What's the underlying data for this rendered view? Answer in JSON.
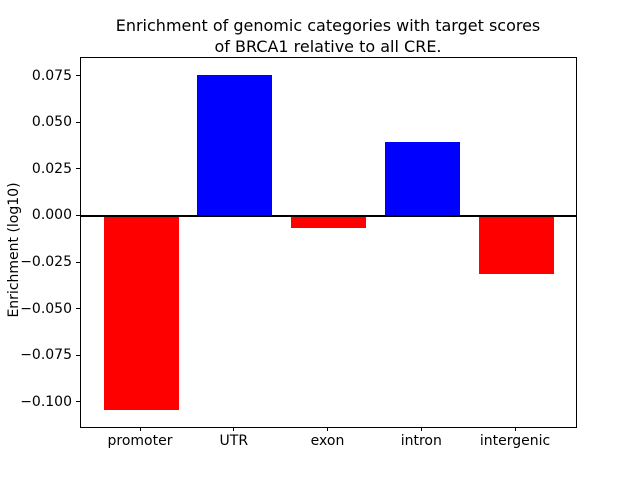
{
  "chart_data": {
    "type": "bar",
    "title": "Enrichment of genomic categories with target scores of BRCA1 relative to all CRE.",
    "title_lines": [
      "Enrichment of genomic categories with target scores",
      "of BRCA1 relative to all CRE."
    ],
    "xlabel": "",
    "ylabel": "Enrichment (log10)",
    "categories": [
      "promoter",
      "UTR",
      "exon",
      "intron",
      "intergenic"
    ],
    "values": [
      -0.104,
      0.076,
      -0.006,
      0.04,
      -0.031
    ],
    "bar_colors": [
      "#ff0000",
      "#0000ff",
      "#ff0000",
      "#0000ff",
      "#ff0000"
    ],
    "positive_color": "#0000ff",
    "negative_color": "#ff0000",
    "ylim": [
      -0.113,
      0.085
    ],
    "yticks": [
      -0.1,
      -0.075,
      -0.05,
      -0.025,
      0.0,
      0.025,
      0.05,
      0.075
    ],
    "ytick_labels": [
      "−0.100",
      "−0.075",
      "−0.050",
      "−0.025",
      "0.000",
      "0.025",
      "0.050",
      "0.075"
    ],
    "zero_line": true,
    "grid": false,
    "legend": null,
    "background_color": "#ffffff",
    "axis_color": "#000000"
  }
}
